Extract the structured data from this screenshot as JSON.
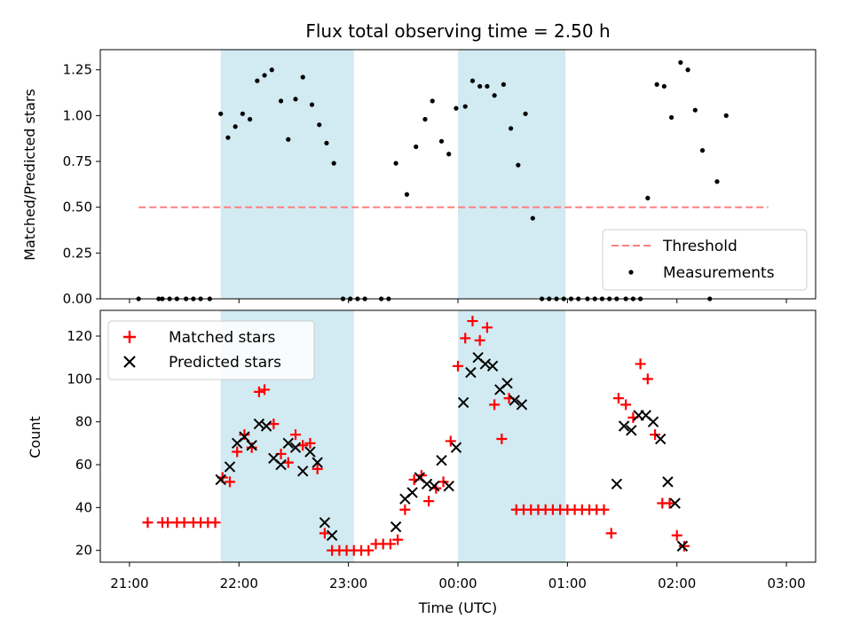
{
  "chart_data": [
    {
      "type": "scatter",
      "title": "Flux total observing time = 2.50 h",
      "xlabel": "",
      "ylabel": "Matched/Predicted stars",
      "ylim": [
        0,
        1.36
      ],
      "yticks": [
        0,
        0.25,
        0.5,
        0.75,
        1.0,
        1.25
      ],
      "ytick_labels": [
        "0.00",
        "0.25",
        "0.50",
        "0.75",
        "1.00",
        "1.25"
      ],
      "legend_position": "bottom-right",
      "shaded_intervals": [
        [
          "21:50",
          "23:03"
        ],
        [
          "00:00",
          "00:59"
        ]
      ],
      "shaded_color": "#add8e6",
      "series": [
        {
          "name": "Threshold",
          "kind": "dashed-line",
          "color": "#ff7f7f",
          "x_start": "21:05",
          "x_end": "02:50",
          "value": 0.5
        },
        {
          "name": "Measurements",
          "kind": "points",
          "color": "#000000",
          "points": [
            [
              "21:05",
              0
            ],
            [
              "21:16",
              0
            ],
            [
              "21:18",
              0
            ],
            [
              "21:22",
              0
            ],
            [
              "21:26",
              0
            ],
            [
              "21:31",
              0
            ],
            [
              "21:35",
              0
            ],
            [
              "21:39",
              0
            ],
            [
              "21:44",
              0
            ],
            [
              "21:50",
              1.01
            ],
            [
              "21:54",
              0.88
            ],
            [
              "21:58",
              0.94
            ],
            [
              "22:02",
              1.01
            ],
            [
              "22:06",
              0.98
            ],
            [
              "22:10",
              1.19
            ],
            [
              "22:14",
              1.22
            ],
            [
              "22:18",
              1.25
            ],
            [
              "22:23",
              1.08
            ],
            [
              "22:27",
              0.87
            ],
            [
              "22:31",
              1.09
            ],
            [
              "22:35",
              1.21
            ],
            [
              "22:40",
              1.06
            ],
            [
              "22:44",
              0.95
            ],
            [
              "22:48",
              0.85
            ],
            [
              "22:52",
              0.74
            ],
            [
              "22:57",
              0
            ],
            [
              "23:01",
              0
            ],
            [
              "23:05",
              0
            ],
            [
              "23:09",
              0
            ],
            [
              "23:18",
              0
            ],
            [
              "23:22",
              0
            ],
            [
              "23:26",
              0.74
            ],
            [
              "23:32",
              0.57
            ],
            [
              "23:37",
              0.83
            ],
            [
              "23:42",
              0.98
            ],
            [
              "23:46",
              1.08
            ],
            [
              "23:51",
              0.86
            ],
            [
              "23:55",
              0.79
            ],
            [
              "23:59",
              1.04
            ],
            [
              "00:04",
              1.05
            ],
            [
              "00:08",
              1.19
            ],
            [
              "00:12",
              1.16
            ],
            [
              "00:16",
              1.16
            ],
            [
              "00:20",
              1.11
            ],
            [
              "00:25",
              1.17
            ],
            [
              "00:29",
              0.93
            ],
            [
              "00:33",
              0.73
            ],
            [
              "00:37",
              1.01
            ],
            [
              "00:41",
              0.44
            ],
            [
              "00:46",
              0
            ],
            [
              "00:50",
              0
            ],
            [
              "00:54",
              0
            ],
            [
              "00:58",
              0
            ],
            [
              "01:02",
              0
            ],
            [
              "01:06",
              0
            ],
            [
              "01:11",
              0
            ],
            [
              "01:15",
              0
            ],
            [
              "01:19",
              0
            ],
            [
              "01:23",
              0
            ],
            [
              "01:27",
              0
            ],
            [
              "01:32",
              0
            ],
            [
              "01:36",
              0
            ],
            [
              "01:40",
              0
            ],
            [
              "01:44",
              0.55
            ],
            [
              "01:49",
              1.17
            ],
            [
              "01:53",
              1.16
            ],
            [
              "01:57",
              0.99
            ],
            [
              "02:02",
              1.29
            ],
            [
              "02:06",
              1.25
            ],
            [
              "02:10",
              1.03
            ],
            [
              "02:14",
              0.81
            ],
            [
              "02:18",
              0
            ],
            [
              "02:22",
              0.64
            ],
            [
              "02:27",
              1.0
            ]
          ]
        }
      ]
    },
    {
      "type": "scatter",
      "title": "",
      "xlabel": "Time (UTC)",
      "ylabel": "Count",
      "ylim": [
        14.5,
        132
      ],
      "yticks": [
        20,
        40,
        60,
        80,
        100,
        120
      ],
      "ytick_labels": [
        "20",
        "40",
        "60",
        "80",
        "100",
        "120"
      ],
      "xticks": [
        "21:00",
        "22:00",
        "23:00",
        "00:00",
        "01:00",
        "02:00",
        "03:00"
      ],
      "legend_position": "top-left",
      "shaded_intervals": [
        [
          "21:50",
          "23:03"
        ],
        [
          "00:00",
          "00:59"
        ]
      ],
      "shaded_color": "#add8e6",
      "series": [
        {
          "name": "Matched stars",
          "marker": "plus",
          "color": "#ff0000",
          "points": [
            [
              "21:10",
              33
            ],
            [
              "21:18",
              33
            ],
            [
              "21:21",
              33
            ],
            [
              "21:26",
              33
            ],
            [
              "21:30",
              33
            ],
            [
              "21:35",
              33
            ],
            [
              "21:39",
              33
            ],
            [
              "21:43",
              33
            ],
            [
              "21:47",
              33
            ],
            [
              "21:51",
              54
            ],
            [
              "21:55",
              52
            ],
            [
              "21:59",
              66
            ],
            [
              "22:03",
              74
            ],
            [
              "22:07",
              68
            ],
            [
              "22:11",
              94
            ],
            [
              "22:14",
              95
            ],
            [
              "22:19",
              79
            ],
            [
              "22:23",
              65
            ],
            [
              "22:27",
              61
            ],
            [
              "22:31",
              74
            ],
            [
              "22:35",
              69
            ],
            [
              "22:39",
              70
            ],
            [
              "22:43",
              58
            ],
            [
              "22:47",
              28
            ],
            [
              "22:51",
              20
            ],
            [
              "22:55",
              20
            ],
            [
              "22:59",
              20
            ],
            [
              "23:03",
              20
            ],
            [
              "23:07",
              20
            ],
            [
              "23:11",
              20
            ],
            [
              "23:15",
              23
            ],
            [
              "23:19",
              23
            ],
            [
              "23:23",
              23
            ],
            [
              "23:27",
              25
            ],
            [
              "23:31",
              39
            ],
            [
              "23:36",
              53
            ],
            [
              "23:40",
              55
            ],
            [
              "23:44",
              43
            ],
            [
              "23:48",
              49
            ],
            [
              "23:52",
              52
            ],
            [
              "23:56",
              71
            ],
            [
              "00:00",
              106
            ],
            [
              "00:04",
              119
            ],
            [
              "00:08",
              127
            ],
            [
              "00:12",
              118
            ],
            [
              "00:16",
              124
            ],
            [
              "00:20",
              88
            ],
            [
              "00:24",
              72
            ],
            [
              "00:28",
              91
            ],
            [
              "00:32",
              39
            ],
            [
              "00:36",
              39
            ],
            [
              "00:40",
              39
            ],
            [
              "00:44",
              39
            ],
            [
              "00:48",
              39
            ],
            [
              "00:52",
              39
            ],
            [
              "00:56",
              39
            ],
            [
              "01:00",
              39
            ],
            [
              "01:04",
              39
            ],
            [
              "01:08",
              39
            ],
            [
              "01:12",
              39
            ],
            [
              "01:16",
              39
            ],
            [
              "01:20",
              39
            ],
            [
              "01:24",
              28
            ],
            [
              "01:28",
              91
            ],
            [
              "01:32",
              88
            ],
            [
              "01:36",
              82
            ],
            [
              "01:40",
              107
            ],
            [
              "01:44",
              100
            ],
            [
              "01:48",
              74
            ],
            [
              "01:52",
              42
            ],
            [
              "01:56",
              42
            ],
            [
              "02:00",
              27
            ],
            [
              "02:04",
              22
            ]
          ]
        },
        {
          "name": "Predicted stars",
          "marker": "x",
          "color": "#000000",
          "points": [
            [
              "21:50",
              53
            ],
            [
              "21:55",
              59
            ],
            [
              "21:59",
              70
            ],
            [
              "22:03",
              73
            ],
            [
              "22:07",
              69
            ],
            [
              "22:11",
              79
            ],
            [
              "22:15",
              78
            ],
            [
              "22:19",
              63
            ],
            [
              "22:23",
              60
            ],
            [
              "22:27",
              70
            ],
            [
              "22:31",
              68
            ],
            [
              "22:35",
              57
            ],
            [
              "22:39",
              66
            ],
            [
              "22:43",
              61
            ],
            [
              "22:47",
              33
            ],
            [
              "22:51",
              27
            ],
            [
              "23:26",
              31
            ],
            [
              "23:31",
              44
            ],
            [
              "23:35",
              47
            ],
            [
              "23:39",
              54
            ],
            [
              "23:43",
              51
            ],
            [
              "23:47",
              50
            ],
            [
              "23:51",
              62
            ],
            [
              "23:55",
              50
            ],
            [
              "23:59",
              68
            ],
            [
              "00:03",
              89
            ],
            [
              "00:07",
              103
            ],
            [
              "00:11",
              110
            ],
            [
              "00:15",
              107
            ],
            [
              "00:19",
              106
            ],
            [
              "00:23",
              95
            ],
            [
              "00:27",
              98
            ],
            [
              "00:31",
              90
            ],
            [
              "00:35",
              88
            ],
            [
              "01:27",
              51
            ],
            [
              "01:31",
              78
            ],
            [
              "01:35",
              76
            ],
            [
              "01:39",
              83
            ],
            [
              "01:43",
              83
            ],
            [
              "01:47",
              80
            ],
            [
              "01:51",
              72
            ],
            [
              "01:55",
              52
            ],
            [
              "01:59",
              42
            ],
            [
              "02:03",
              22
            ]
          ]
        }
      ]
    }
  ]
}
